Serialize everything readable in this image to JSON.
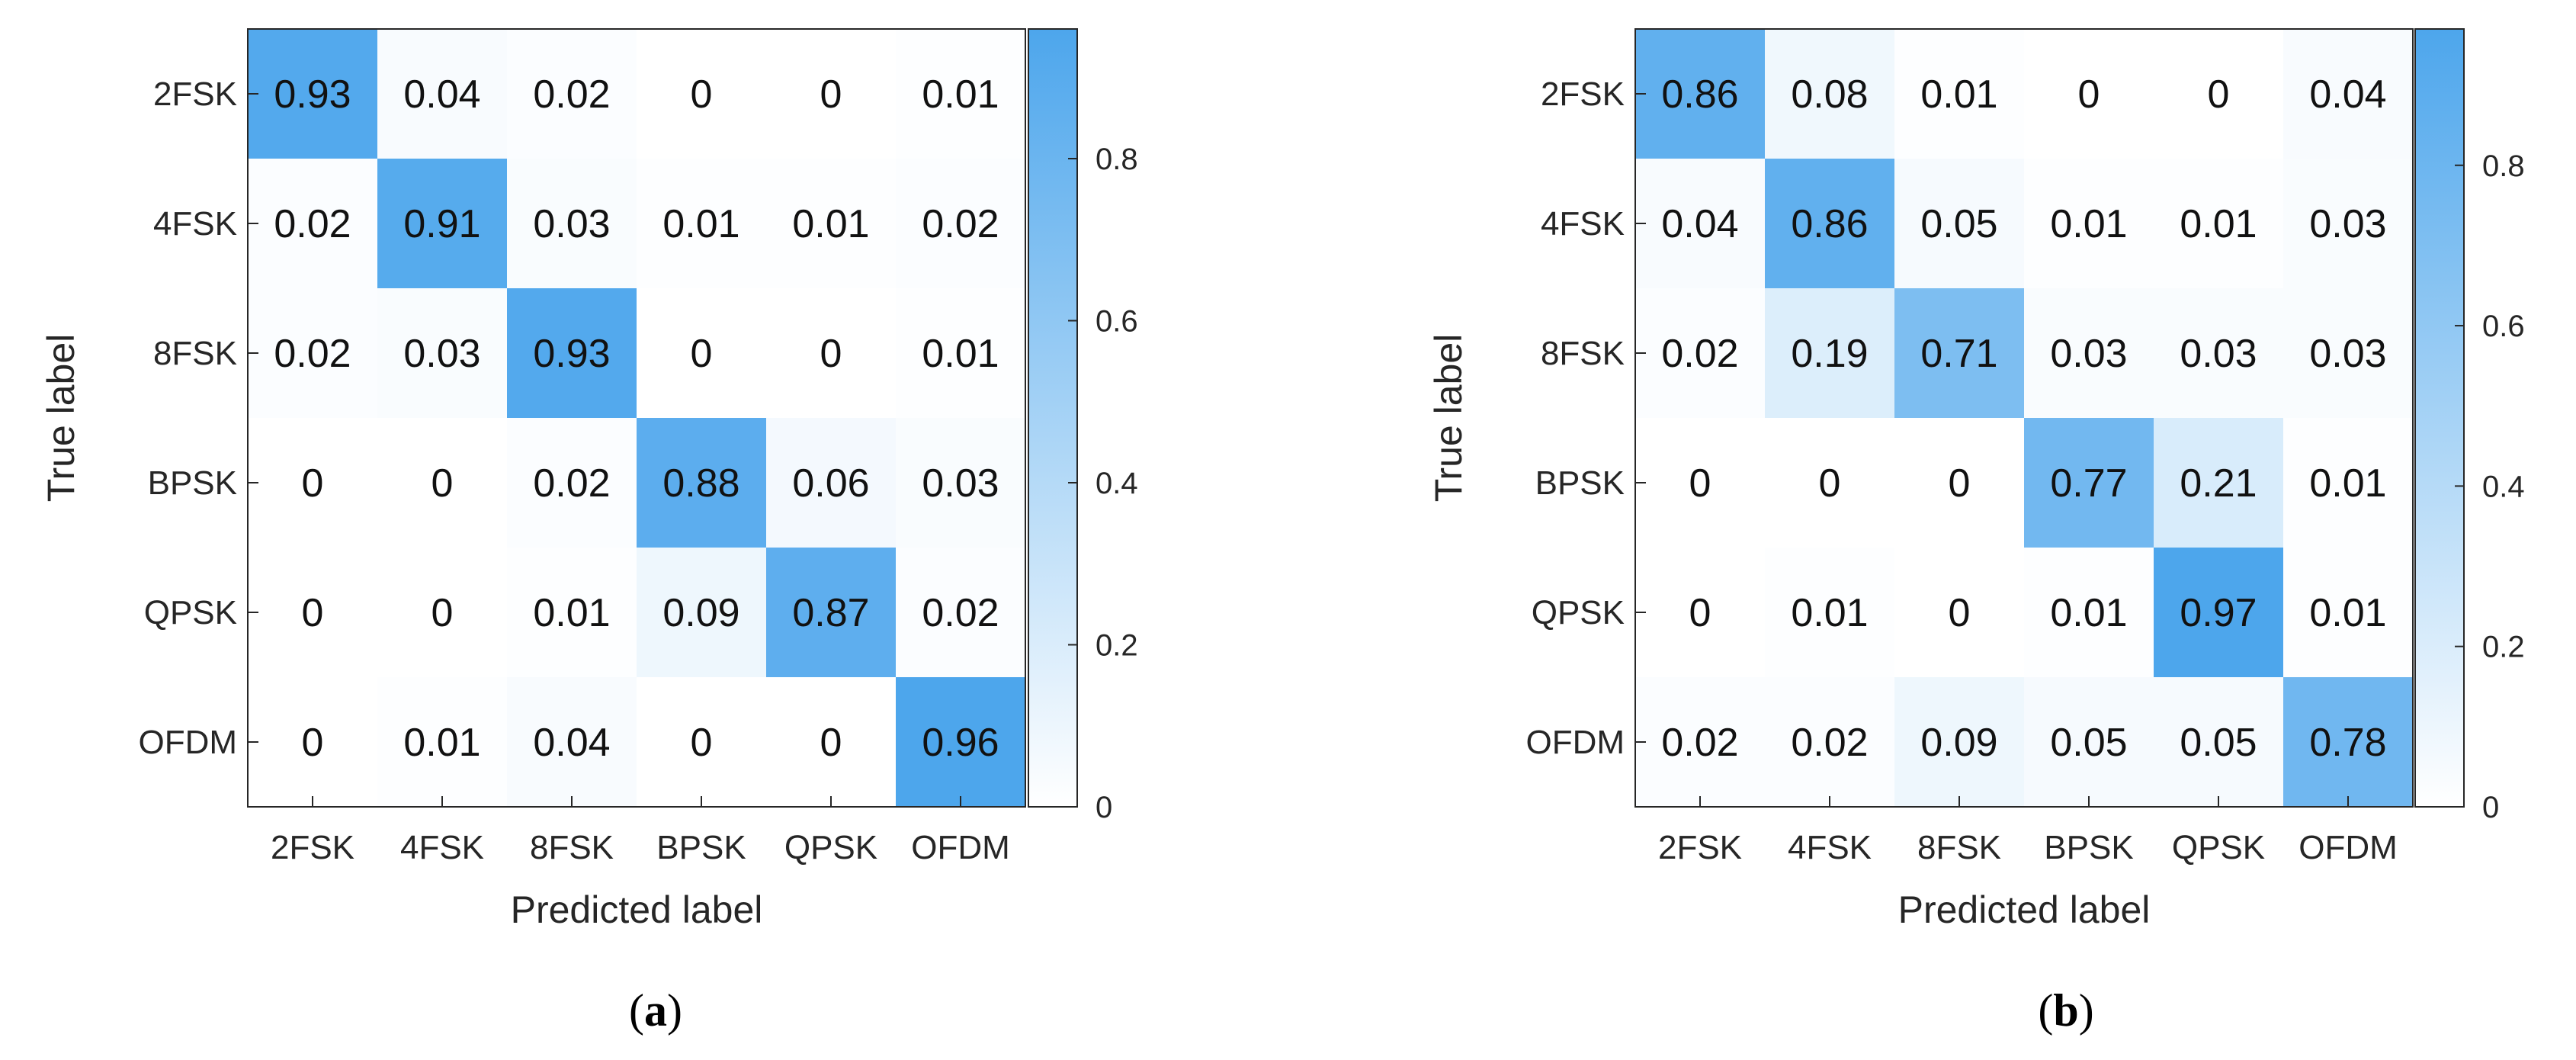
{
  "chart_data": [
    {
      "type": "heatmap",
      "caption_letter": "a",
      "xlabel": "Predicted label",
      "ylabel": "True label",
      "x_categories": [
        "2FSK",
        "4FSK",
        "8FSK",
        "BPSK",
        "QPSK",
        "OFDM"
      ],
      "y_categories": [
        "2FSK",
        "4FSK",
        "8FSK",
        "BPSK",
        "QPSK",
        "OFDM"
      ],
      "values": [
        [
          0.93,
          0.04,
          0.02,
          0,
          0,
          0.01
        ],
        [
          0.02,
          0.91,
          0.03,
          0.01,
          0.01,
          0.02
        ],
        [
          0.02,
          0.03,
          0.93,
          0,
          0,
          0.01
        ],
        [
          0,
          0,
          0.02,
          0.88,
          0.06,
          0.03
        ],
        [
          0,
          0,
          0.01,
          0.09,
          0.87,
          0.02
        ],
        [
          0,
          0.01,
          0.04,
          0,
          0,
          0.96
        ]
      ],
      "labels": [
        [
          "0.93",
          "0.04",
          "0.02",
          "0",
          "0",
          "0.01"
        ],
        [
          "0.02",
          "0.91",
          "0.03",
          "0.01",
          "0.01",
          "0.02"
        ],
        [
          "0.02",
          "0.03",
          "0.93",
          "0",
          "0",
          "0.01"
        ],
        [
          "0",
          "0",
          "0.02",
          "0.88",
          "0.06",
          "0.03"
        ],
        [
          "0",
          "0",
          "0.01",
          "0.09",
          "0.87",
          "0.02"
        ],
        [
          "0",
          "0.01",
          "0.04",
          "0",
          "0",
          "0.96"
        ]
      ],
      "colorbar": {
        "range": [
          0,
          0.96
        ],
        "ticks": [
          0,
          0.2,
          0.4,
          0.6,
          0.8
        ],
        "tick_labels": [
          "0",
          "0.2",
          "0.4",
          "0.6",
          "0.8"
        ]
      },
      "colormap": [
        "#ffffff",
        "#4da6ec"
      ]
    },
    {
      "type": "heatmap",
      "caption_letter": "b",
      "xlabel": "Predicted label",
      "ylabel": "True label",
      "x_categories": [
        "2FSK",
        "4FSK",
        "8FSK",
        "BPSK",
        "QPSK",
        "OFDM"
      ],
      "y_categories": [
        "2FSK",
        "4FSK",
        "8FSK",
        "BPSK",
        "QPSK",
        "OFDM"
      ],
      "values": [
        [
          0.86,
          0.08,
          0.01,
          0,
          0,
          0.04
        ],
        [
          0.04,
          0.86,
          0.05,
          0.01,
          0.01,
          0.03
        ],
        [
          0.02,
          0.19,
          0.71,
          0.03,
          0.03,
          0.03
        ],
        [
          0,
          0,
          0,
          0.77,
          0.21,
          0.01
        ],
        [
          0,
          0.01,
          0,
          0.01,
          0.97,
          0.01
        ],
        [
          0.02,
          0.02,
          0.09,
          0.05,
          0.05,
          0.78
        ]
      ],
      "labels": [
        [
          "0.86",
          "0.08",
          "0.01",
          "0",
          "0",
          "0.04"
        ],
        [
          "0.04",
          "0.86",
          "0.05",
          "0.01",
          "0.01",
          "0.03"
        ],
        [
          "0.02",
          "0.19",
          "0.71",
          "0.03",
          "0.03",
          "0.03"
        ],
        [
          "0",
          "0",
          "0",
          "0.77",
          "0.21",
          "0.01"
        ],
        [
          "0",
          "0.01",
          "0",
          "0.01",
          "0.97",
          "0.01"
        ],
        [
          "0.02",
          "0.02",
          "0.09",
          "0.05",
          "0.05",
          "0.78"
        ]
      ],
      "colorbar": {
        "range": [
          0,
          0.97
        ],
        "ticks": [
          0,
          0.2,
          0.4,
          0.6,
          0.8
        ],
        "tick_labels": [
          "0",
          "0.2",
          "0.4",
          "0.6",
          "0.8"
        ]
      },
      "colormap": [
        "#ffffff",
        "#4da6ec"
      ]
    }
  ]
}
